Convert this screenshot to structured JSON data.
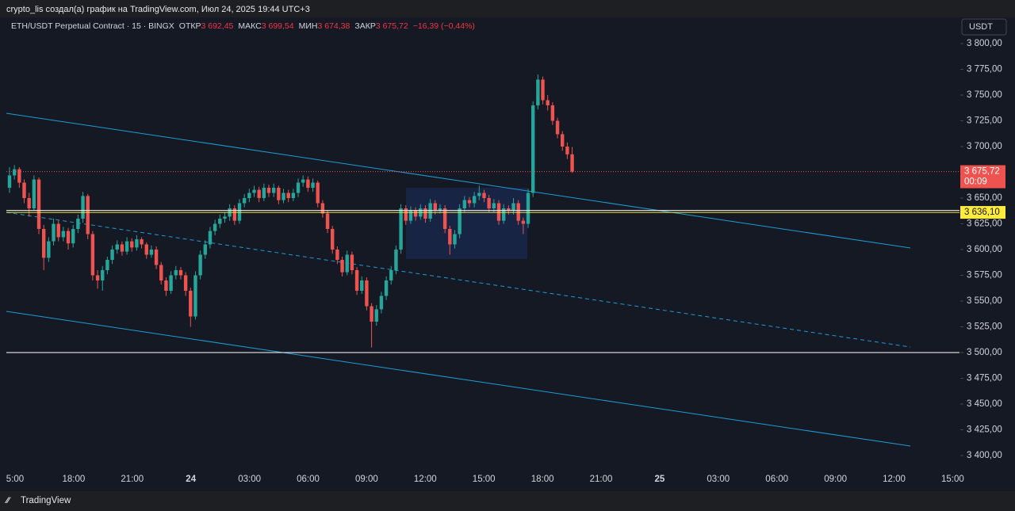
{
  "header": {
    "author_line": "crypto_lis создал(а) график на TradingView.com, Июл 24, 2025 19:44 UTC+3",
    "brand": "TradingView",
    "currency_button": "USDT"
  },
  "legend": {
    "symbol": "ETH/USDT Perpetual Contract · 15 · BINGX",
    "open_label": "ОТКР",
    "open": "3 692,45",
    "high_label": "МАКС",
    "high": "3 699,54",
    "low_label": "МИН",
    "low": "3 674,38",
    "close_label": "ЗАКР",
    "close": "3 675,72",
    "change": "−16,39 (−0,44%)"
  },
  "chart_data": {
    "type": "candlestick",
    "up_color": "#26a69a",
    "down_color": "#ef5350",
    "ylim": [
      3400,
      3800
    ],
    "yticks": [
      {
        "value": 3400,
        "label": "3 400,00"
      },
      {
        "value": 3425,
        "label": "3 425,00"
      },
      {
        "value": 3450,
        "label": "3 450,00"
      },
      {
        "value": 3475,
        "label": "3 475,00"
      },
      {
        "value": 3500,
        "label": "3 500,00"
      },
      {
        "value": 3525,
        "label": "3 525,00"
      },
      {
        "value": 3550,
        "label": "3 550,00"
      },
      {
        "value": 3575,
        "label": "3 575,00"
      },
      {
        "value": 3600,
        "label": "3 600,00"
      },
      {
        "value": 3625,
        "label": "3 625,00"
      },
      {
        "value": 3650,
        "label": "3 650,00"
      },
      {
        "value": 3675,
        "label": "3 675,00"
      },
      {
        "value": 3700,
        "label": "3 700,00"
      },
      {
        "value": 3725,
        "label": "3 725,00"
      },
      {
        "value": 3750,
        "label": "3 750,00"
      },
      {
        "value": 3775,
        "label": "3 775,00"
      },
      {
        "value": 3800,
        "label": "3 800,00"
      }
    ],
    "xtick_labels": [
      "5:00",
      "18:00",
      "21:00",
      "24",
      "03:00",
      "06:00",
      "09:00",
      "12:00",
      "15:00",
      "18:00",
      "21:00",
      "25",
      "03:00",
      "06:00",
      "09:00",
      "12:00",
      "15:00"
    ],
    "last_price_label": "3 675,72",
    "countdown": "00:09",
    "levels": [
      {
        "value": 3638,
        "color": "#ffffff"
      },
      {
        "value": 3636.1,
        "label": "3 636,10",
        "color": "#ffeb3b"
      },
      {
        "value": 3500,
        "color": "#ffffff"
      }
    ],
    "ohlc": [
      [
        3660,
        3680,
        3655,
        3672
      ],
      [
        3672,
        3682,
        3668,
        3678
      ],
      [
        3678,
        3680,
        3660,
        3665
      ],
      [
        3665,
        3668,
        3645,
        3650
      ],
      [
        3650,
        3655,
        3632,
        3640
      ],
      [
        3640,
        3672,
        3638,
        3668
      ],
      [
        3668,
        3670,
        3615,
        3620
      ],
      [
        3620,
        3624,
        3580,
        3592
      ],
      [
        3592,
        3612,
        3588,
        3608
      ],
      [
        3608,
        3630,
        3604,
        3625
      ],
      [
        3625,
        3628,
        3608,
        3612
      ],
      [
        3612,
        3622,
        3608,
        3618
      ],
      [
        3618,
        3621,
        3600,
        3606
      ],
      [
        3606,
        3624,
        3602,
        3620
      ],
      [
        3620,
        3634,
        3616,
        3630
      ],
      [
        3630,
        3656,
        3626,
        3652
      ],
      [
        3652,
        3654,
        3610,
        3615
      ],
      [
        3615,
        3618,
        3570,
        3575
      ],
      [
        3575,
        3580,
        3562,
        3570
      ],
      [
        3570,
        3584,
        3560,
        3580
      ],
      [
        3580,
        3593,
        3576,
        3590
      ],
      [
        3590,
        3604,
        3586,
        3600
      ],
      [
        3600,
        3609,
        3596,
        3605
      ],
      [
        3605,
        3608,
        3594,
        3598
      ],
      [
        3598,
        3612,
        3595,
        3608
      ],
      [
        3608,
        3611,
        3598,
        3602
      ],
      [
        3602,
        3614,
        3599,
        3610
      ],
      [
        3610,
        3612,
        3601,
        3605
      ],
      [
        3605,
        3607,
        3591,
        3595
      ],
      [
        3595,
        3604,
        3592,
        3600
      ],
      [
        3600,
        3603,
        3581,
        3585
      ],
      [
        3585,
        3588,
        3566,
        3570
      ],
      [
        3570,
        3573,
        3555,
        3560
      ],
      [
        3560,
        3579,
        3557,
        3575
      ],
      [
        3575,
        3584,
        3571,
        3580
      ],
      [
        3580,
        3583,
        3571,
        3575
      ],
      [
        3575,
        3578,
        3555,
        3560
      ],
      [
        3560,
        3563,
        3525,
        3535
      ],
      [
        3535,
        3579,
        3532,
        3575
      ],
      [
        3575,
        3599,
        3571,
        3595
      ],
      [
        3595,
        3609,
        3591,
        3605
      ],
      [
        3605,
        3622,
        3601,
        3618
      ],
      [
        3618,
        3629,
        3614,
        3625
      ],
      [
        3625,
        3634,
        3621,
        3630
      ],
      [
        3630,
        3636,
        3626,
        3632
      ],
      [
        3632,
        3644,
        3628,
        3640
      ],
      [
        3640,
        3643,
        3624,
        3628
      ],
      [
        3628,
        3649,
        3625,
        3645
      ],
      [
        3645,
        3654,
        3641,
        3650
      ],
      [
        3650,
        3659,
        3646,
        3655
      ],
      [
        3655,
        3662,
        3651,
        3658
      ],
      [
        3658,
        3661,
        3646,
        3650
      ],
      [
        3650,
        3664,
        3647,
        3660
      ],
      [
        3660,
        3663,
        3651,
        3655
      ],
      [
        3655,
        3664,
        3651,
        3660
      ],
      [
        3660,
        3662,
        3644,
        3648
      ],
      [
        3648,
        3659,
        3645,
        3655
      ],
      [
        3655,
        3658,
        3646,
        3650
      ],
      [
        3650,
        3659,
        3647,
        3655
      ],
      [
        3655,
        3669,
        3651,
        3665
      ],
      [
        3665,
        3672,
        3661,
        3668
      ],
      [
        3668,
        3671,
        3656,
        3660
      ],
      [
        3660,
        3669,
        3656,
        3665
      ],
      [
        3665,
        3667,
        3641,
        3645
      ],
      [
        3645,
        3648,
        3631,
        3635
      ],
      [
        3635,
        3638,
        3616,
        3620
      ],
      [
        3620,
        3623,
        3596,
        3600
      ],
      [
        3600,
        3603,
        3586,
        3590
      ],
      [
        3590,
        3593,
        3574,
        3578
      ],
      [
        3578,
        3599,
        3575,
        3595
      ],
      [
        3595,
        3598,
        3576,
        3580
      ],
      [
        3580,
        3583,
        3556,
        3560
      ],
      [
        3560,
        3574,
        3557,
        3570
      ],
      [
        3570,
        3573,
        3541,
        3545
      ],
      [
        3545,
        3548,
        3505,
        3530
      ],
      [
        3530,
        3546,
        3526,
        3542
      ],
      [
        3542,
        3559,
        3538,
        3555
      ],
      [
        3555,
        3574,
        3551,
        3570
      ],
      [
        3570,
        3584,
        3566,
        3580
      ],
      [
        3580,
        3604,
        3576,
        3600
      ],
      [
        3600,
        3644,
        3596,
        3640
      ],
      [
        3640,
        3643,
        3624,
        3628
      ],
      [
        3628,
        3642,
        3625,
        3638
      ],
      [
        3638,
        3641,
        3628,
        3632
      ],
      [
        3632,
        3644,
        3629,
        3640
      ],
      [
        3640,
        3643,
        3626,
        3630
      ],
      [
        3630,
        3649,
        3627,
        3645
      ],
      [
        3645,
        3648,
        3634,
        3638
      ],
      [
        3638,
        3644,
        3635,
        3640
      ],
      [
        3640,
        3643,
        3616,
        3620
      ],
      [
        3620,
        3623,
        3595,
        3605
      ],
      [
        3605,
        3619,
        3601,
        3615
      ],
      [
        3615,
        3644,
        3611,
        3640
      ],
      [
        3640,
        3652,
        3636,
        3648
      ],
      [
        3648,
        3651,
        3641,
        3645
      ],
      [
        3645,
        3656,
        3641,
        3652
      ],
      [
        3652,
        3662,
        3648,
        3655
      ],
      [
        3655,
        3658,
        3646,
        3650
      ],
      [
        3650,
        3653,
        3636,
        3640
      ],
      [
        3640,
        3649,
        3636,
        3645
      ],
      [
        3645,
        3648,
        3624,
        3628
      ],
      [
        3628,
        3644,
        3625,
        3640
      ],
      [
        3640,
        3643,
        3634,
        3638
      ],
      [
        3638,
        3650,
        3634,
        3645
      ],
      [
        3645,
        3648,
        3624,
        3628
      ],
      [
        3628,
        3631,
        3615,
        3625
      ],
      [
        3625,
        3659,
        3621,
        3655
      ],
      [
        3655,
        3744,
        3651,
        3740
      ],
      [
        3740,
        3770,
        3736,
        3765
      ],
      [
        3765,
        3768,
        3741,
        3745
      ],
      [
        3745,
        3750,
        3735,
        3740
      ],
      [
        3740,
        3743,
        3721,
        3725
      ],
      [
        3725,
        3728,
        3708,
        3712
      ],
      [
        3712,
        3715,
        3696,
        3700
      ],
      [
        3700,
        3704,
        3688,
        3692.45
      ],
      [
        3692.45,
        3699.54,
        3674.38,
        3675.72
      ]
    ]
  }
}
